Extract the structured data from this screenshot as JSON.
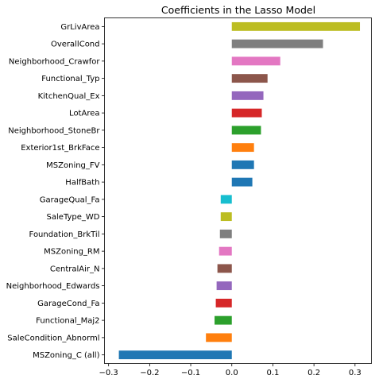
{
  "chart_data": {
    "type": "bar",
    "orientation": "horizontal",
    "title": "Coefficients in the Lasso Model",
    "xlabel": "",
    "ylabel": "",
    "xlim": [
      -0.31,
      0.34
    ],
    "xticks": [
      -0.3,
      -0.2,
      -0.1,
      0.0,
      0.1,
      0.2,
      0.3
    ],
    "xtick_labels": [
      "−0.3",
      "−0.2",
      "−0.1",
      "0.0",
      "0.1",
      "0.2",
      "0.3"
    ],
    "grid": false,
    "categories": [
      "GrLivArea",
      "OverallCond",
      "Neighborhood_Crawfor",
      "Functional_Typ",
      "KitchenQual_Ex",
      "LotArea",
      "Neighborhood_StoneBr",
      "Exterior1st_BrkFace",
      "MSZoning_FV",
      "HalfBath",
      "GarageQual_Fa",
      "SaleType_WD",
      "Foundation_BrkTil",
      "MSZoning_RM",
      "CentralAir_N",
      "Neighborhood_Edwards",
      "GarageCond_Fa",
      "Functional_Maj2",
      "SaleCondition_Abnorml",
      "MSZoning_C (all)"
    ],
    "values": [
      0.312,
      0.222,
      0.118,
      0.087,
      0.077,
      0.073,
      0.071,
      0.054,
      0.054,
      0.05,
      -0.027,
      -0.027,
      -0.029,
      -0.031,
      -0.035,
      -0.037,
      -0.039,
      -0.042,
      -0.063,
      -0.275
    ],
    "colors": [
      "#bcbd22",
      "#7f7f7f",
      "#e377c2",
      "#8c564b",
      "#9467bd",
      "#d62728",
      "#2ca02c",
      "#ff7f0e",
      "#1f77b4",
      "#1f77b4",
      "#17becf",
      "#bcbd22",
      "#7f7f7f",
      "#e377c2",
      "#8c564b",
      "#9467bd",
      "#d62728",
      "#2ca02c",
      "#ff7f0e",
      "#1f77b4"
    ]
  }
}
